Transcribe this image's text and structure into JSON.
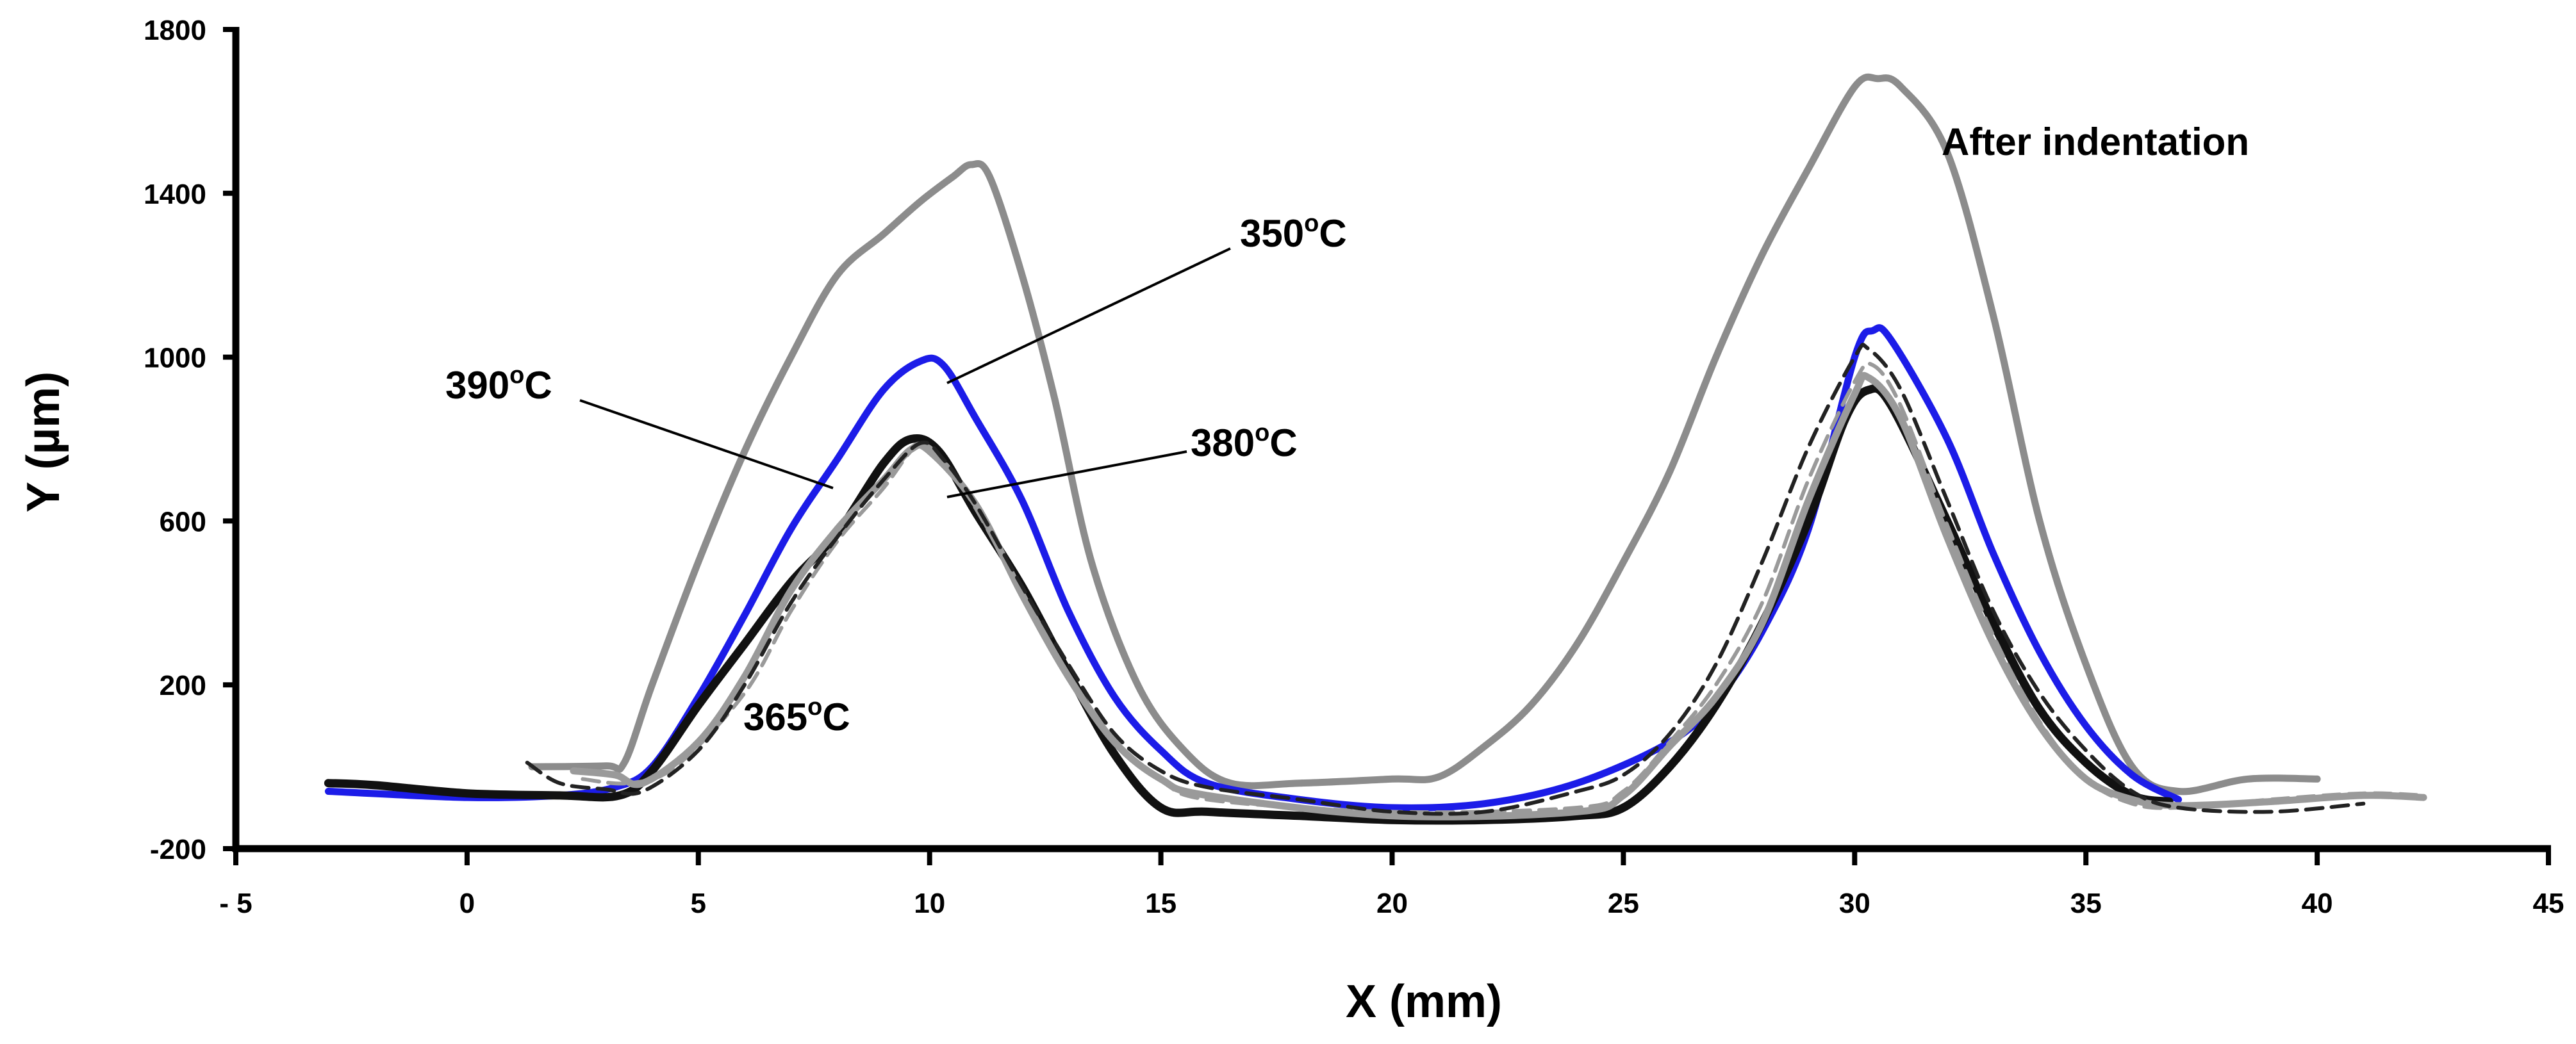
{
  "chart_data": {
    "type": "line",
    "title": "",
    "xlabel": "X (mm)",
    "ylabel": "Y  (µm)",
    "xlim": [
      -5,
      45
    ],
    "ylim": [
      -200,
      1800
    ],
    "grid": false,
    "x_ticks": [
      -5,
      0,
      5,
      10,
      15,
      20,
      25,
      30,
      35,
      40,
      45
    ],
    "x_tick_labels": [
      "- 5",
      "0",
      "5",
      "10",
      "15",
      "20",
      "25",
      "30",
      "35",
      "40",
      "45"
    ],
    "y_ticks": [
      -200,
      200,
      600,
      1000,
      1400,
      1800
    ],
    "y_tick_labels": [
      "-200",
      "200",
      "600",
      "1000",
      "1400",
      "1800"
    ],
    "annotations": [
      {
        "id": "after",
        "text": "After indentation",
        "sup": "",
        "suffix": ""
      },
      {
        "id": "t350",
        "text": "350",
        "sup": "o",
        "suffix": "C"
      },
      {
        "id": "t390",
        "text": "390",
        "sup": "o",
        "suffix": "C"
      },
      {
        "id": "t380",
        "text": "380",
        "sup": "o",
        "suffix": "C"
      },
      {
        "id": "t365",
        "text": "365",
        "sup": "o",
        "suffix": "C"
      }
    ],
    "series": [
      {
        "name": "After indentation",
        "color": "#8c8c8c",
        "dashed": false,
        "points": [
          [
            1.4,
            0
          ],
          [
            3,
            2
          ],
          [
            3.4,
            10
          ],
          [
            4,
            200
          ],
          [
            5,
            500
          ],
          [
            6,
            770
          ],
          [
            7,
            1000
          ],
          [
            8,
            1200
          ],
          [
            9,
            1300
          ],
          [
            9.8,
            1380
          ],
          [
            10.5,
            1440
          ],
          [
            10.9,
            1470
          ],
          [
            11.3,
            1440
          ],
          [
            12,
            1200
          ],
          [
            12.7,
            900
          ],
          [
            13.5,
            500
          ],
          [
            14.5,
            200
          ],
          [
            15.5,
            40
          ],
          [
            16.5,
            -40
          ],
          [
            18,
            -40
          ],
          [
            20,
            -30
          ],
          [
            21,
            -25
          ],
          [
            22,
            50
          ],
          [
            23,
            150
          ],
          [
            24,
            300
          ],
          [
            25,
            500
          ],
          [
            26,
            720
          ],
          [
            27,
            1000
          ],
          [
            28,
            1250
          ],
          [
            29,
            1460
          ],
          [
            30,
            1660
          ],
          [
            30.5,
            1680
          ],
          [
            31,
            1660
          ],
          [
            32,
            1500
          ],
          [
            33,
            1100
          ],
          [
            34,
            600
          ],
          [
            35,
            250
          ],
          [
            36,
            0
          ],
          [
            37,
            -60
          ],
          [
            38.5,
            -30
          ],
          [
            40,
            -30
          ]
        ]
      },
      {
        "name": "350°C",
        "color": "#1c1ce8",
        "dashed": false,
        "points": [
          [
            -3,
            -60
          ],
          [
            0,
            -75
          ],
          [
            2,
            -70
          ],
          [
            3.2,
            -50
          ],
          [
            4,
            0
          ],
          [
            5,
            170
          ],
          [
            6,
            370
          ],
          [
            7,
            580
          ],
          [
            8,
            750
          ],
          [
            9,
            920
          ],
          [
            9.8,
            990
          ],
          [
            10.3,
            980
          ],
          [
            11,
            850
          ],
          [
            12,
            650
          ],
          [
            13,
            380
          ],
          [
            14,
            170
          ],
          [
            15,
            40
          ],
          [
            16,
            -40
          ],
          [
            18,
            -80
          ],
          [
            20,
            -100
          ],
          [
            22,
            -90
          ],
          [
            24,
            -40
          ],
          [
            26,
            60
          ],
          [
            27,
            160
          ],
          [
            28,
            330
          ],
          [
            29,
            580
          ],
          [
            30,
            1000
          ],
          [
            30.4,
            1065
          ],
          [
            30.8,
            1040
          ],
          [
            32,
            800
          ],
          [
            33,
            520
          ],
          [
            34,
            280
          ],
          [
            35,
            100
          ],
          [
            36,
            -20
          ],
          [
            37,
            -80
          ]
        ]
      },
      {
        "name": "390°C",
        "color": "#111111",
        "dashed": false,
        "width": 13,
        "points": [
          [
            -3,
            -40
          ],
          [
            -2,
            -45
          ],
          [
            0,
            -65
          ],
          [
            2,
            -70
          ],
          [
            3.3,
            -70
          ],
          [
            4,
            -10
          ],
          [
            5,
            150
          ],
          [
            6,
            300
          ],
          [
            7,
            450
          ],
          [
            8,
            570
          ],
          [
            9,
            740
          ],
          [
            9.6,
            800
          ],
          [
            10.2,
            770
          ],
          [
            11,
            620
          ],
          [
            12,
            440
          ],
          [
            13,
            230
          ],
          [
            14,
            30
          ],
          [
            15,
            -100
          ],
          [
            16,
            -110
          ],
          [
            18,
            -120
          ],
          [
            20,
            -130
          ],
          [
            22,
            -130
          ],
          [
            24,
            -120
          ],
          [
            25,
            -100
          ],
          [
            26,
            0
          ],
          [
            27,
            150
          ],
          [
            28,
            350
          ],
          [
            29,
            600
          ],
          [
            29.8,
            850
          ],
          [
            30.3,
            920
          ],
          [
            30.8,
            880
          ],
          [
            32,
            600
          ],
          [
            33,
            350
          ],
          [
            34,
            140
          ],
          [
            35,
            10
          ],
          [
            36,
            -70
          ],
          [
            36.8,
            -85
          ]
        ]
      },
      {
        "name": "380°C",
        "color": "#9a9a9a",
        "dashed": false,
        "points": [
          [
            2.3,
            -10
          ],
          [
            3.2,
            -20
          ],
          [
            3.8,
            -40
          ],
          [
            5,
            60
          ],
          [
            6,
            220
          ],
          [
            7,
            430
          ],
          [
            8,
            580
          ],
          [
            9,
            700
          ],
          [
            9.6,
            775
          ],
          [
            10,
            770
          ],
          [
            11,
            640
          ],
          [
            12,
            420
          ],
          [
            13,
            220
          ],
          [
            14,
            60
          ],
          [
            15,
            -30
          ],
          [
            16,
            -70
          ],
          [
            20,
            -120
          ],
          [
            24,
            -110
          ],
          [
            25,
            -70
          ],
          [
            26,
            50
          ],
          [
            27,
            170
          ],
          [
            28,
            350
          ],
          [
            29,
            650
          ],
          [
            30,
            910
          ],
          [
            30.3,
            950
          ],
          [
            31,
            850
          ],
          [
            32,
            560
          ],
          [
            33,
            300
          ],
          [
            34,
            100
          ],
          [
            35,
            -30
          ],
          [
            36,
            -80
          ],
          [
            37,
            -95
          ],
          [
            39,
            -85
          ],
          [
            41,
            -70
          ],
          [
            42.3,
            -75
          ]
        ]
      },
      {
        "name": "365°C (grey dashed)",
        "color": "#9a9a9a",
        "dashed": true,
        "points": [
          [
            2.5,
            -30
          ],
          [
            3.5,
            -40
          ],
          [
            4.5,
            0
          ],
          [
            6,
            180
          ],
          [
            7,
            380
          ],
          [
            8,
            550
          ],
          [
            9,
            680
          ],
          [
            9.7,
            780
          ],
          [
            10.2,
            760
          ],
          [
            11,
            630
          ],
          [
            12,
            420
          ],
          [
            13,
            220
          ],
          [
            14,
            60
          ],
          [
            15,
            -30
          ],
          [
            16,
            -80
          ],
          [
            20,
            -110
          ],
          [
            24,
            -100
          ],
          [
            25,
            -60
          ],
          [
            26,
            60
          ],
          [
            27,
            200
          ],
          [
            28,
            400
          ],
          [
            29,
            700
          ],
          [
            30,
            940
          ],
          [
            30.4,
            980
          ],
          [
            31,
            880
          ],
          [
            32,
            590
          ],
          [
            33,
            320
          ],
          [
            34,
            110
          ],
          [
            35,
            -30
          ],
          [
            36,
            -90
          ],
          [
            37,
            -100
          ],
          [
            39,
            -80
          ],
          [
            41,
            -65
          ],
          [
            42.3,
            -70
          ]
        ]
      },
      {
        "name": "365°C",
        "color": "#222222",
        "dashed": true,
        "points": [
          [
            1.3,
            10
          ],
          [
            2,
            -40
          ],
          [
            3,
            -55
          ],
          [
            3.8,
            -60
          ],
          [
            5,
            40
          ],
          [
            6,
            200
          ],
          [
            7,
            400
          ],
          [
            8,
            560
          ],
          [
            9,
            700
          ],
          [
            9.8,
            790
          ],
          [
            10.3,
            750
          ],
          [
            11,
            640
          ],
          [
            12,
            440
          ],
          [
            13,
            250
          ],
          [
            14,
            80
          ],
          [
            15,
            -10
          ],
          [
            16,
            -50
          ],
          [
            18,
            -80
          ],
          [
            20,
            -110
          ],
          [
            22,
            -110
          ],
          [
            24,
            -60
          ],
          [
            25,
            -20
          ],
          [
            26,
            80
          ],
          [
            27,
            250
          ],
          [
            28,
            500
          ],
          [
            29,
            780
          ],
          [
            30,
            1000
          ],
          [
            30.3,
            1020
          ],
          [
            31,
            920
          ],
          [
            32,
            650
          ],
          [
            33,
            380
          ],
          [
            34,
            180
          ],
          [
            35,
            40
          ],
          [
            36,
            -60
          ],
          [
            37,
            -100
          ],
          [
            39,
            -110
          ],
          [
            41,
            -90
          ]
        ]
      }
    ]
  }
}
